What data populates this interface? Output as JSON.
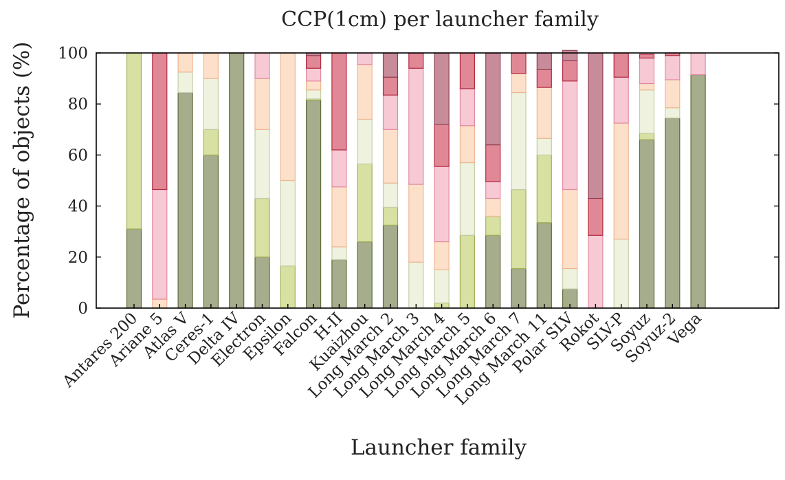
{
  "chart_data": {
    "type": "bar",
    "stacked": true,
    "title": "CCP(1cm) per launcher family",
    "xlabel": "Launcher family",
    "ylabel": "Percentage of objects (%)",
    "ylim": [
      0,
      100
    ],
    "yticks": [
      0,
      20,
      40,
      60,
      80,
      100
    ],
    "grid": false,
    "legend": "none",
    "categories": [
      "Antares 200",
      "Ariane 5",
      "Atlas V",
      "Ceres-1",
      "Delta IV",
      "Electron",
      "Epsilon",
      "Falcon",
      "H-II",
      "Kuaizhou",
      "Long March 2",
      "Long March 3",
      "Long March 4",
      "Long March 5",
      "Long March 6",
      "Long March 7",
      "Long March 11",
      "Polar SLV",
      "Rokot",
      "SLV-P",
      "Soyuz",
      "Soyuz-2",
      "Vega"
    ],
    "series": [
      {
        "color": "#a6ad8c",
        "edge": "#5e6a3a",
        "values": [
          31,
          0,
          84.5,
          60,
          100,
          20,
          0,
          81.5,
          19,
          26,
          32.5,
          0,
          0,
          0,
          28.5,
          15.5,
          33.5,
          7.5,
          0,
          0,
          66,
          74.5,
          91.5
        ]
      },
      {
        "color": "#d8e0a2",
        "edge": "#a2b058",
        "values": [
          69,
          0,
          0,
          10,
          0,
          23,
          16.5,
          0.5,
          0,
          30.5,
          7,
          0,
          2,
          28.5,
          7.5,
          31,
          26.5,
          0,
          0,
          0,
          2.5,
          0,
          0
        ]
      },
      {
        "color": "#eef2de",
        "edge": "#c4ceaa",
        "values": [
          0,
          0,
          8,
          20,
          0,
          27,
          33.5,
          3.5,
          5,
          17.5,
          9.5,
          18,
          13,
          28.5,
          0,
          38,
          6.5,
          8,
          0,
          27,
          17,
          4,
          0
        ]
      },
      {
        "color": "#fde0c9",
        "edge": "#efb692",
        "values": [
          0,
          3.5,
          7.5,
          10,
          0,
          20,
          50,
          3.5,
          23.5,
          21.5,
          21,
          30.5,
          11,
          14.5,
          7,
          7.5,
          20,
          31,
          0,
          45.5,
          2.5,
          11,
          0
        ]
      },
      {
        "color": "#f6c9d5",
        "edge": "#e38aa2",
        "values": [
          0,
          43,
          0,
          0,
          0,
          10,
          0,
          5,
          14.5,
          4.5,
          13.5,
          45.5,
          29.5,
          14.5,
          6.5,
          0,
          0,
          42.5,
          28.5,
          18,
          10,
          9.5,
          8.5
        ]
      },
      {
        "color": "#e08896",
        "edge": "#b3293f",
        "values": [
          0,
          53.5,
          0,
          0,
          0,
          0,
          0,
          5,
          38,
          0,
          7,
          6,
          16.5,
          14,
          14.5,
          8,
          7,
          8,
          14.5,
          9.5,
          1.5,
          1,
          0
        ]
      },
      {
        "color": "#c78b99",
        "edge": "#8e4255",
        "values": [
          0,
          0,
          0,
          0,
          0,
          0,
          0,
          1,
          0,
          0,
          9.5,
          0,
          28,
          0,
          36,
          0,
          6.5,
          4,
          57,
          0,
          0,
          0,
          0
        ]
      }
    ]
  }
}
